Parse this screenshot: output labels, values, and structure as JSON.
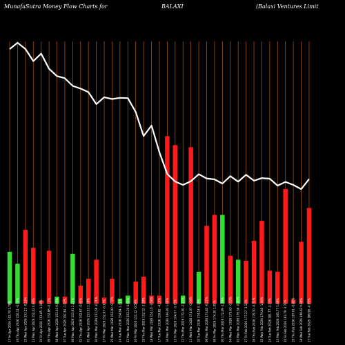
{
  "header": {
    "left": "MunafaSutra  Money Flow  Charts for",
    "center": "BALAXI",
    "right": "(Balaxi   Ventures Limit"
  },
  "colors": {
    "background": "#000000",
    "gridline": "#a0520d",
    "up": "#33dd33",
    "down": "#ff1a1a",
    "line": "#ffffff"
  },
  "chart_data": {
    "type": "bar",
    "title": "MunafaSutra Money Flow Charts for BALAXI (Balaxi Ventures Limit",
    "x": [
      "17 Fri Apr 2026 152.79 1.78%",
      "16 Thu Apr 2026 150.11 -0.73%",
      "15 Wed Apr 2026 151.22 -0.53%",
      "13 Mon Apr 2026 152.02 0.64%",
      "10 Fri Apr 2026 151.05 -1.18%",
      "09 Thu Apr 2026 152.86 -0.11%",
      "08 Wed Apr 2026 153.03 0.45%",
      "07 Tue Apr 2026 152.34 -1.02%",
      "06 Mon Apr 2026 153.91 1.21%",
      "02 Thu Apr 2026 152.07 -0.95%",
      "01 Wed Apr 2026 153.53 1.28%",
      "30 Mon Mar 2026 151.59 -0.71%",
      "27 Fri Mar 2026 152.67 -0.17%",
      "25 Wed Mar 2026 152.93 -0.72%",
      "24 Tue Mar 2026 154.04 1.21%",
      "23 Mon Mar 2026 152.20 0.65%",
      "20 Fri Mar 2026 151.22 -0.59%",
      "19 Thu Mar 2026 152.12 -1.28%",
      "18 Wed Mar 2026 154.10 -3.58%",
      "17 Tue Mar 2026 159.82 -4.20%",
      "16 Mon Mar 2026 166.83 1.68%",
      "13 Fri Mar 2026 164.07 -3.71%",
      "12 Thu Mar 2026 170.40 -2.11%",
      "11 Wed Mar 2026 174.07 -0.04%",
      "10 Tue Mar 2026 174.14 0.18%",
      "09 Mon Mar 2026 173.83 -0.27%",
      "06 Fri Mar 2026 174.30 1.05%",
      "05 Thu Mar 2026 172.49 -1.79%",
      "04 Wed Mar 2026 175.63 -0.53%",
      "02 Mon Mar 2026 176.56 -0.40%",
      "27 Fri Feb 2026 177.27 -1.13%",
      "26 Thu Feb 2026 179.30 -0.31%",
      "25 Wed Feb 2026 179.85 -1.06%",
      "24 Tue Feb 2026 181.77 -2.15%",
      "23 Mon Feb 2026 185.77 1.08%",
      "20 Fri Feb 2026 183.79 -1.72%",
      "19 Thu Feb 2026 187.01 -0.85%",
      "18 Wed Feb 2026 188.62 0.89%",
      "17 Tue Feb 2026 186.96 -0.95%"
    ],
    "series": [
      {
        "name": "Money Flow",
        "values": [
          52,
          40,
          74,
          56,
          3,
          53,
          7,
          7,
          50,
          18,
          25,
          44,
          6,
          25,
          5,
          8,
          22,
          27,
          8,
          8,
          168,
          159,
          8,
          157,
          32,
          78,
          89,
          89,
          48,
          44,
          43,
          63,
          83,
          33,
          32,
          115,
          4,
          62,
          96
        ],
        "direction": [
          "up",
          "up",
          "down",
          "down",
          "down",
          "down",
          "up",
          "down",
          "up",
          "down",
          "down",
          "down",
          "down",
          "down",
          "up",
          "up",
          "down",
          "down",
          "down",
          "down",
          "down",
          "down",
          "up",
          "down",
          "up",
          "down",
          "down",
          "up",
          "down",
          "up",
          "down",
          "down",
          "down",
          "down",
          "down",
          "down",
          "down",
          "down",
          "down"
        ]
      },
      {
        "name": "Price",
        "values": [
          186.96,
          188.62,
          187.01,
          183.79,
          185.77,
          181.77,
          179.85,
          179.3,
          177.27,
          176.56,
          175.63,
          172.49,
          174.3,
          173.83,
          174.14,
          174.07,
          170.4,
          164.07,
          166.83,
          159.82,
          154.1,
          152.12,
          151.22,
          152.2,
          154.04,
          152.93,
          152.67,
          151.59,
          153.53,
          152.07,
          153.91,
          152.34,
          153.03,
          152.86,
          151.05,
          152.02,
          151.22,
          150.11,
          152.79
        ]
      }
    ],
    "bar_ylim": [
      0,
      180
    ],
    "price_ylim": [
      120,
      188.62
    ]
  }
}
